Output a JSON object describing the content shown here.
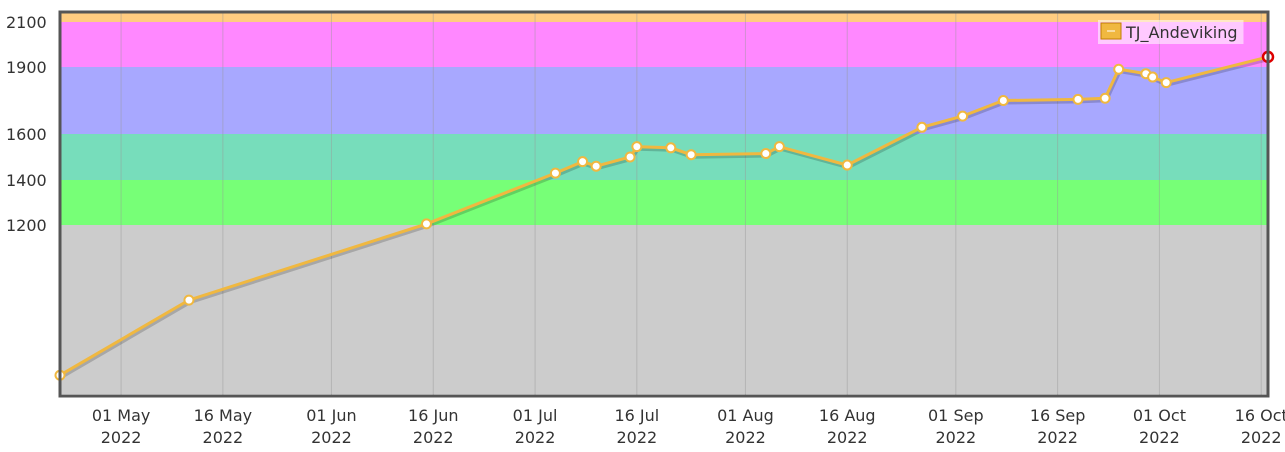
{
  "chart_data": {
    "type": "line",
    "title": "",
    "xlabel": "",
    "ylabel": "",
    "grid": true,
    "legend_position": "top-right",
    "x_range": [
      "2022-04-22",
      "2022-10-17"
    ],
    "y_scale": "nonlinear",
    "ylim": [
      750,
      2150
    ],
    "y_ticks": [
      {
        "value": 1200,
        "label": "1200"
      },
      {
        "value": 1400,
        "label": "1400"
      },
      {
        "value": 1600,
        "label": "1600"
      },
      {
        "value": 1900,
        "label": "1900"
      },
      {
        "value": 2100,
        "label": "2100"
      }
    ],
    "x_ticks": [
      {
        "date": "2022-05-01",
        "line1": "01 May",
        "line2": "2022"
      },
      {
        "date": "2022-05-16",
        "line1": "16 May",
        "line2": "2022"
      },
      {
        "date": "2022-06-01",
        "line1": "01 Jun",
        "line2": "2022"
      },
      {
        "date": "2022-06-16",
        "line1": "16 Jun",
        "line2": "2022"
      },
      {
        "date": "2022-07-01",
        "line1": "01 Jul",
        "line2": "2022"
      },
      {
        "date": "2022-07-16",
        "line1": "16 Jul",
        "line2": "2022"
      },
      {
        "date": "2022-08-01",
        "line1": "01 Aug",
        "line2": "2022"
      },
      {
        "date": "2022-08-16",
        "line1": "16 Aug",
        "line2": "2022"
      },
      {
        "date": "2022-09-01",
        "line1": "01 Sep",
        "line2": "2022"
      },
      {
        "date": "2022-09-16",
        "line1": "16 Sep",
        "line2": "2022"
      },
      {
        "date": "2022-10-01",
        "line1": "01 Oct",
        "line2": "2022"
      },
      {
        "date": "2022-10-16",
        "line1": "16 Oct",
        "line2": "2022"
      }
    ],
    "bands": [
      {
        "from": 2100,
        "to": 2150,
        "color": "#ffcc80"
      },
      {
        "from": 1900,
        "to": 2100,
        "color": "#ff88ff"
      },
      {
        "from": 1600,
        "to": 1900,
        "color": "#a8a8ff"
      },
      {
        "from": 1400,
        "to": 1600,
        "color": "#77ddbb"
      },
      {
        "from": 1200,
        "to": 1400,
        "color": "#77ff77"
      },
      {
        "from": 750,
        "to": 1200,
        "color": "#cccccc"
      }
    ],
    "series": [
      {
        "name": "TJ_Andeviking",
        "color": "#f0b840",
        "last_point_color": "#dd0000",
        "points": [
          {
            "x": "2022-04-22",
            "y": 800
          },
          {
            "x": "2022-05-11",
            "y": 1000
          },
          {
            "x": "2022-06-15",
            "y": 1205
          },
          {
            "x": "2022-07-04",
            "y": 1430
          },
          {
            "x": "2022-07-08",
            "y": 1480
          },
          {
            "x": "2022-07-10",
            "y": 1460
          },
          {
            "x": "2022-07-15",
            "y": 1500
          },
          {
            "x": "2022-07-16",
            "y": 1545
          },
          {
            "x": "2022-07-21",
            "y": 1540
          },
          {
            "x": "2022-07-24",
            "y": 1510
          },
          {
            "x": "2022-08-04",
            "y": 1515
          },
          {
            "x": "2022-08-06",
            "y": 1545
          },
          {
            "x": "2022-08-16",
            "y": 1465
          },
          {
            "x": "2022-08-27",
            "y": 1630
          },
          {
            "x": "2022-09-02",
            "y": 1680
          },
          {
            "x": "2022-09-08",
            "y": 1750
          },
          {
            "x": "2022-09-19",
            "y": 1755
          },
          {
            "x": "2022-09-23",
            "y": 1760
          },
          {
            "x": "2022-09-25",
            "y": 1890
          },
          {
            "x": "2022-09-29",
            "y": 1870
          },
          {
            "x": "2022-09-30",
            "y": 1855
          },
          {
            "x": "2022-10-02",
            "y": 1830
          },
          {
            "x": "2022-10-17",
            "y": 1945
          }
        ]
      }
    ]
  }
}
